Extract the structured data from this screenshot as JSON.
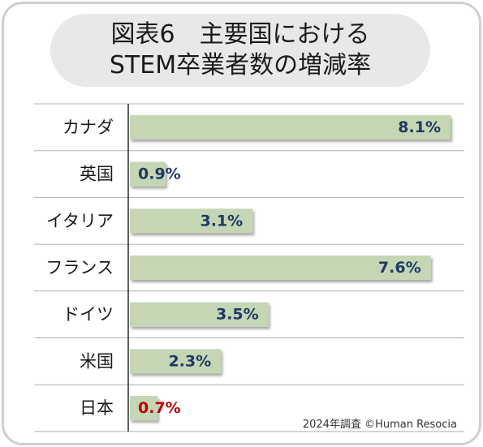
{
  "title": {
    "line1": "図表6　主要国における",
    "line2": "STEM卒業者数の増減率"
  },
  "source": "2024年調査 ©Human Resocia",
  "colors": {
    "bar": "#c5d6b5",
    "value_text": "#1f3864",
    "highlight_text": "#c00000",
    "category_text": "#1a1a1a",
    "grid": "#b0b0b0",
    "axis": "#2b2b2b"
  },
  "chart_data": {
    "type": "bar",
    "orientation": "horizontal",
    "categories": [
      "カナダ",
      "英国",
      "イタリア",
      "フランス",
      "ドイツ",
      "米国",
      "日本"
    ],
    "values": [
      8.1,
      0.9,
      3.1,
      7.6,
      3.5,
      2.3,
      0.7
    ],
    "value_labels": [
      "8.1%",
      "0.9%",
      "3.1%",
      "7.6%",
      "3.5%",
      "2.3%",
      "0.7%"
    ],
    "highlight_category": "日本",
    "xlim": [
      0,
      8.1
    ],
    "grid": true
  }
}
